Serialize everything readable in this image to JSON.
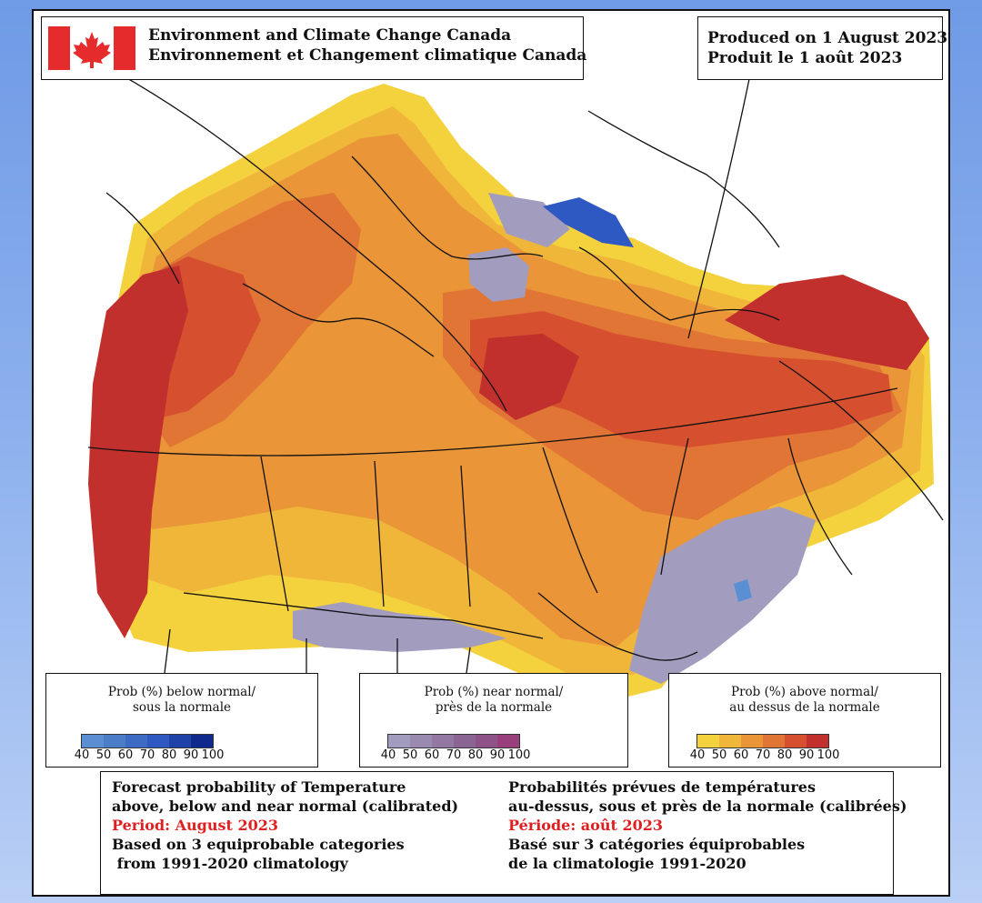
{
  "header": {
    "agency_en": "Environment and Climate Change Canada",
    "agency_fr": "Environnement et Changement climatique Canada",
    "flag_icon": "canada-flag-icon"
  },
  "produced": {
    "en": "Produced on 1 August 2023",
    "fr": "Produit le 1 août 2023"
  },
  "legends": {
    "below": {
      "title_en": "Prob (%) below normal/",
      "title_fr": "sous la normale",
      "colors": [
        "#5b8fd4",
        "#4a7cc8",
        "#3d6bc4",
        "#2f59c2",
        "#1f42a8",
        "#0f2a8c"
      ],
      "ticks": [
        "40",
        "50",
        "60",
        "70",
        "80",
        "90",
        "100"
      ]
    },
    "near": {
      "title_en": "Prob (%) near normal/",
      "title_fr": "près de la normale",
      "colors": [
        "#a29cbf",
        "#9a8ab0",
        "#9278a2",
        "#8a6594",
        "#8e5288",
        "#99407c"
      ],
      "ticks": [
        "40",
        "50",
        "60",
        "70",
        "80",
        "90",
        "100"
      ]
    },
    "above": {
      "title_en": "Prob (%) above normal/",
      "title_fr": "au dessus de la normale",
      "colors": [
        "#f3d23e",
        "#f0b63a",
        "#e99538",
        "#e07535",
        "#d6502f",
        "#c1302c"
      ],
      "ticks": [
        "40",
        "50",
        "60",
        "70",
        "80",
        "90",
        "100"
      ]
    }
  },
  "info": {
    "en": {
      "line1": "Forecast probability of Temperature",
      "line2": "above, below and near normal (calibrated)",
      "period": "Period: August 2023",
      "line4": "Based on 3 equiprobable categories",
      "line5": " from 1991-2020 climatology"
    },
    "fr": {
      "line1": "Probabilités prévues de températures",
      "line2": "au-dessus, sous et près de la normale (calibrées)",
      "period": "Période: août 2023",
      "line4": "Basé sur 3 catégories équiprobables",
      "line5": "de la climatologie 1991-2020"
    }
  },
  "colors": {
    "frame": "#111111",
    "period_text": "#e02020",
    "background": "#7fa6ea"
  }
}
